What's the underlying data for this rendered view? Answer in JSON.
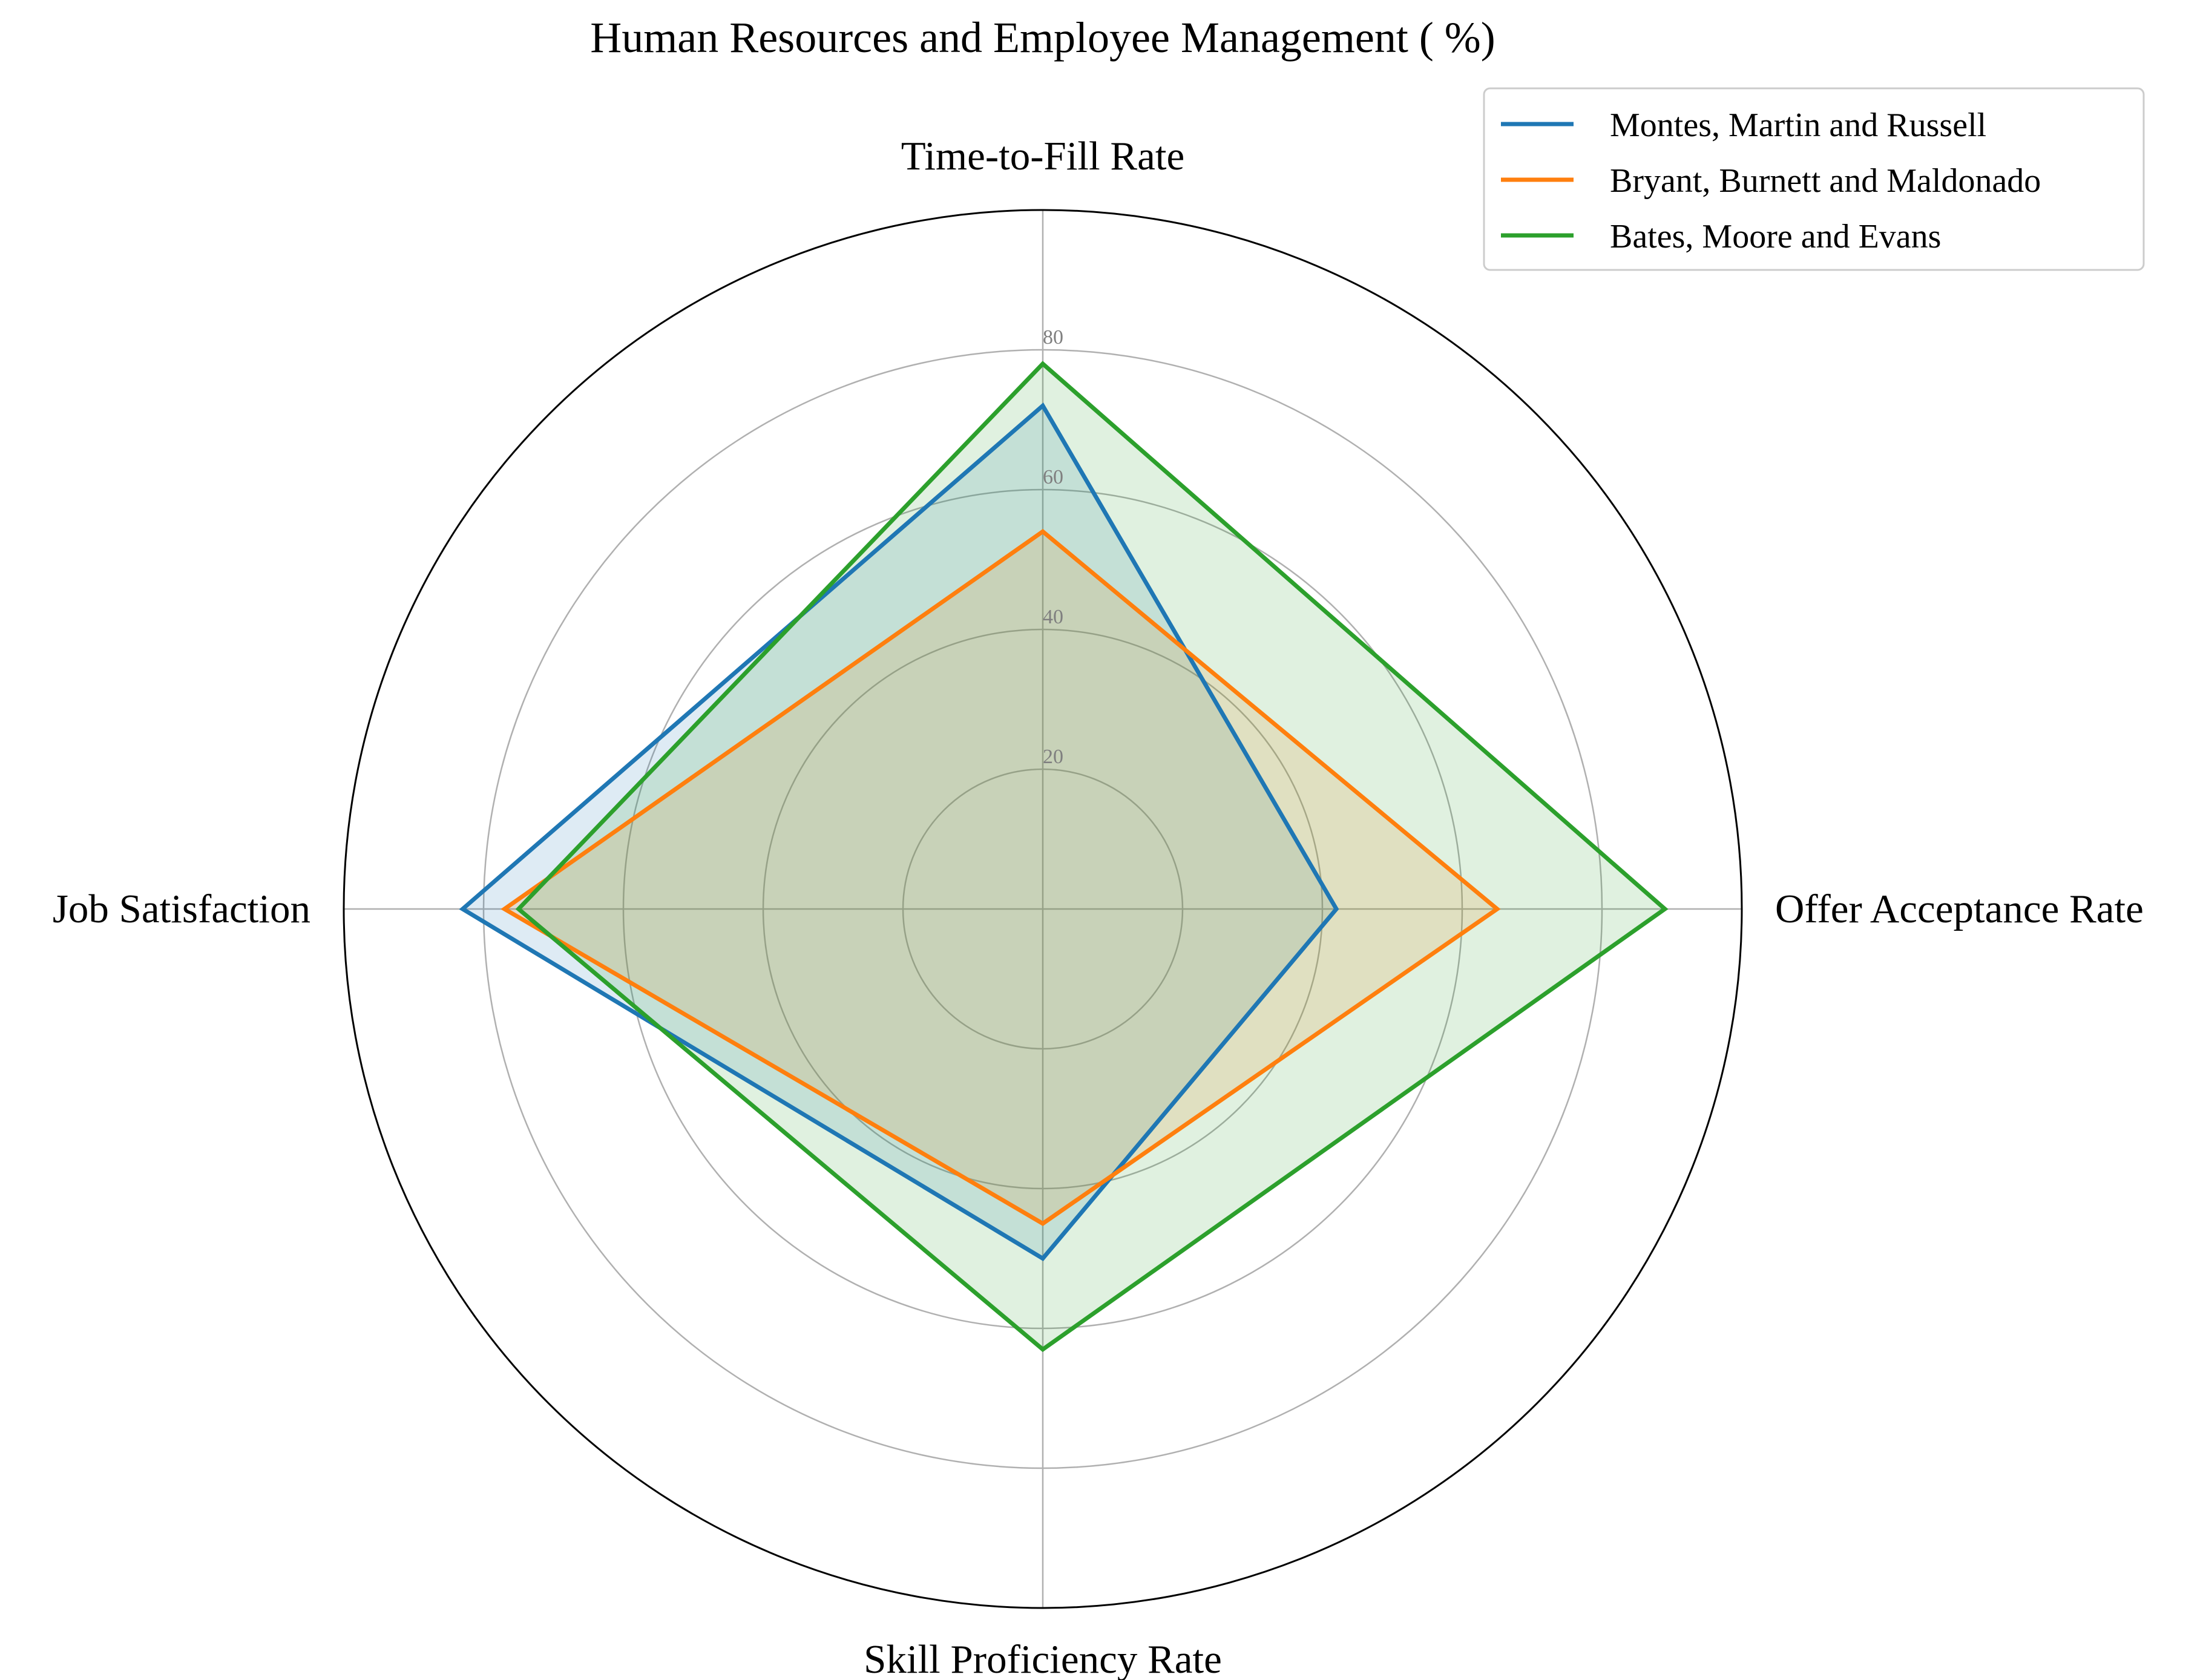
{
  "chart_data": {
    "type": "radar",
    "title": "Human Resources and Employee Management ( %)",
    "axes": [
      "Time-to-Fill Rate",
      "Offer Acceptance Rate",
      "Skill Proficiency Rate",
      "Job Satisfaction"
    ],
    "rlim": [
      0,
      100
    ],
    "rticks": [
      20,
      40,
      60,
      80
    ],
    "grid": true,
    "legend_position": "top-right",
    "series": [
      {
        "name": "Montes, Martin and Russell",
        "color": "#1f77b4",
        "values": [
          72,
          42,
          50,
          83
        ]
      },
      {
        "name": "Bryant, Burnett and Maldonado",
        "color": "#ff7f0e",
        "values": [
          54,
          65,
          45,
          77
        ]
      },
      {
        "name": "Bates, Moore and Evans",
        "color": "#2ca02c",
        "values": [
          78,
          89,
          63,
          75
        ]
      }
    ]
  }
}
